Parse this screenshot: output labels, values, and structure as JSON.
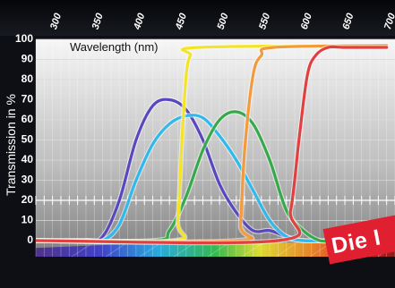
{
  "chart_data": {
    "type": "line",
    "title": "Wavelength (nm)",
    "ylabel": "Transmission in %",
    "xlabel": "",
    "xlim": [
      280,
      710
    ],
    "ylim": [
      -8,
      100
    ],
    "x_ticks": [
      300,
      350,
      400,
      450,
      500,
      550,
      600,
      650,
      700
    ],
    "y_ticks": [
      0,
      10,
      20,
      30,
      40,
      50,
      60,
      70,
      80,
      90,
      100
    ],
    "grid": true,
    "series": [
      {
        "color": "#5848c0",
        "x": [
          280,
          340,
          360,
          380,
          400,
          420,
          440,
          460,
          480,
          500,
          520,
          540,
          560,
          580,
          600,
          640
        ],
        "values": [
          0,
          0,
          2,
          20,
          50,
          67,
          70,
          65,
          50,
          28,
          14,
          5,
          5,
          2,
          0,
          0
        ]
      },
      {
        "color": "#31b9ec",
        "x": [
          280,
          340,
          360,
          380,
          400,
          420,
          440,
          460,
          480,
          500,
          520,
          540,
          560,
          580,
          600,
          640
        ],
        "values": [
          0,
          0,
          0,
          8,
          30,
          48,
          58,
          62,
          61,
          52,
          40,
          25,
          10,
          2,
          0,
          0
        ]
      },
      {
        "color": "#36aa4a",
        "x": [
          280,
          420,
          440,
          460,
          480,
          500,
          520,
          540,
          560,
          580,
          600,
          620,
          640
        ],
        "values": [
          0,
          0,
          5,
          22,
          45,
          60,
          64,
          58,
          40,
          15,
          5,
          0,
          0
        ]
      },
      {
        "color": "#f4e428",
        "x": [
          280,
          445,
          450,
          455,
          460,
          465,
          475,
          700
        ],
        "values": [
          0,
          0,
          10,
          50,
          82,
          92,
          96,
          97
        ]
      },
      {
        "color": "#f39a3c",
        "x": [
          280,
          520,
          525,
          530,
          540,
          550,
          565,
          700
        ],
        "values": [
          0,
          0,
          8,
          45,
          82,
          92,
          96,
          97
        ]
      },
      {
        "color": "#e24040",
        "x": [
          280,
          570,
          585,
          595,
          605,
          615,
          630,
          650,
          700
        ],
        "values": [
          0,
          0,
          15,
          50,
          82,
          92,
          96,
          96,
          96
        ]
      }
    ]
  },
  "badge": {
    "text": "Die I"
  }
}
